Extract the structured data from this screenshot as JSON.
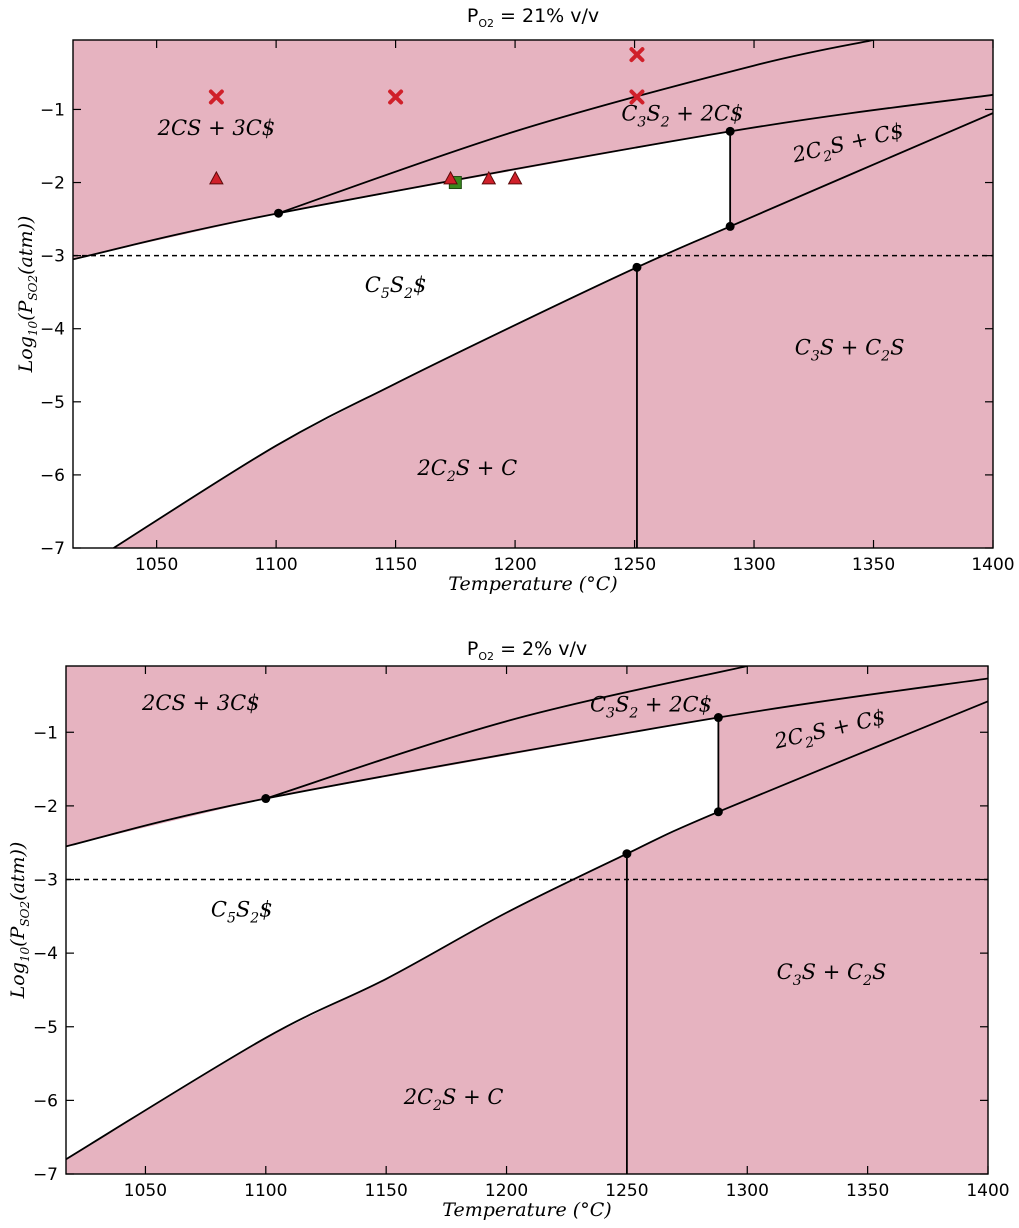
{
  "chart_data": [
    {
      "type": "area",
      "title": "P",
      "title_sub": "O2",
      "title_rest": " = 21% v/v",
      "xlabel": "Temperature (°C)",
      "ylabel": "Log10(PSO2(atm))",
      "xlim": [
        1015,
        1400
      ],
      "ylim": [
        -7,
        -0.05
      ],
      "xticks": [
        1050,
        1100,
        1150,
        1200,
        1250,
        1300,
        1350,
        1400
      ],
      "xtick_labels": [
        "1050",
        "1100",
        "1150",
        "1200",
        "1250",
        "1300",
        "1350",
        "1400"
      ],
      "yticks": [
        -1,
        -2,
        -3,
        -4,
        -5,
        -6,
        -7
      ],
      "ytick_labels": [
        "−1",
        "−2",
        "−3",
        "−4",
        "−5",
        "−6",
        "−7"
      ],
      "grid": false,
      "fill_color": "#e6b3c0",
      "reference_line": -3,
      "series": [
        {
          "role": "upper-left-boundary",
          "x": [
            1015,
            1101,
            1290,
            1400
          ],
          "y": [
            -3.05,
            -2.42,
            -1.3,
            -0.8
          ]
        },
        {
          "role": "cs-c3s2-boundary",
          "x": [
            1101,
            1200,
            1300,
            1350
          ],
          "y": [
            -2.42,
            -1.3,
            -0.4,
            -0.05
          ]
        },
        {
          "role": "lower-boundary",
          "x": [
            1032,
            1100,
            1150,
            1200,
            1251,
            1290,
            1400
          ],
          "y": [
            -7,
            -5.6,
            -4.75,
            -3.95,
            -3.16,
            -2.6,
            -1.05
          ]
        },
        {
          "role": "vertical-1251",
          "x": [
            1251,
            1251
          ],
          "y": [
            -3.16,
            -7
          ]
        },
        {
          "role": "vertical-1290",
          "x": [
            1290,
            1290
          ],
          "y": [
            -1.3,
            -2.6
          ]
        }
      ],
      "invariant_points": [
        {
          "x": 1101,
          "y": -2.42
        },
        {
          "x": 1290,
          "y": -1.3
        },
        {
          "x": 1290,
          "y": -2.6
        },
        {
          "x": 1251,
          "y": -3.16
        }
      ],
      "markers": {
        "cross": [
          {
            "x": 1075,
            "y": -0.83
          },
          {
            "x": 1150,
            "y": -0.83
          },
          {
            "x": 1251,
            "y": -0.83
          },
          {
            "x": 1251,
            "y": -0.25
          }
        ],
        "triangle": [
          {
            "x": 1075,
            "y": -1.95
          },
          {
            "x": 1173,
            "y": -1.95
          },
          {
            "x": 1189,
            "y": -1.95
          },
          {
            "x": 1200,
            "y": -1.95
          }
        ],
        "square": [
          {
            "x": 1175,
            "y": -2.0
          }
        ]
      },
      "region_labels": [
        {
          "text": "2CS + 3C$",
          "x": 1075,
          "y": -1.35
        },
        {
          "text": "C3S2 + 2C$",
          "x": 1270,
          "y": -1.15
        },
        {
          "text": "2C2S + C$",
          "x": 1340,
          "y": -1.55,
          "rotate": -13
        },
        {
          "text": "C5S2$",
          "x": 1150,
          "y": -3.5
        },
        {
          "text": "C3S + C2S",
          "x": 1340,
          "y": -4.35
        },
        {
          "text": "2C2S + C",
          "x": 1180,
          "y": -6.0
        }
      ]
    },
    {
      "type": "area",
      "title": "P",
      "title_sub": "O2",
      "title_rest": " = 2% v/v",
      "xlabel": "Temperature (°C)",
      "ylabel": "Log10(PSO2(atm))",
      "xlim": [
        1017,
        1400
      ],
      "ylim": [
        -7,
        -0.1
      ],
      "xticks": [
        1050,
        1100,
        1150,
        1200,
        1250,
        1300,
        1350,
        1400
      ],
      "xtick_labels": [
        "1050",
        "1100",
        "1150",
        "1200",
        "1250",
        "1300",
        "1350",
        "1400"
      ],
      "yticks": [
        -1,
        -2,
        -3,
        -4,
        -5,
        -6,
        -7
      ],
      "ytick_labels": [
        "−1",
        "−2",
        "−3",
        "−4",
        "−5",
        "−6",
        "−7"
      ],
      "grid": false,
      "fill_color": "#e6b3c0",
      "reference_line": -3,
      "series": [
        {
          "role": "upper-left-boundary",
          "x": [
            1017,
            1100,
            1288,
            1400
          ],
          "y": [
            -2.55,
            -1.9,
            -0.8,
            -0.27
          ]
        },
        {
          "role": "cs-c3s2-boundary",
          "x": [
            1100,
            1200,
            1300
          ],
          "y": [
            -1.9,
            -0.85,
            -0.1
          ]
        },
        {
          "role": "lower-boundary",
          "x": [
            1017,
            1100,
            1150,
            1200,
            1250,
            1288,
            1400
          ],
          "y": [
            -6.8,
            -5.15,
            -4.35,
            -3.45,
            -2.65,
            -2.08,
            -0.58
          ]
        },
        {
          "role": "vertical-1250",
          "x": [
            1250,
            1250
          ],
          "y": [
            -2.65,
            -7
          ]
        },
        {
          "role": "vertical-1288",
          "x": [
            1288,
            1288
          ],
          "y": [
            -0.8,
            -2.08
          ]
        }
      ],
      "invariant_points": [
        {
          "x": 1100,
          "y": -1.9
        },
        {
          "x": 1288,
          "y": -0.8
        },
        {
          "x": 1288,
          "y": -2.08
        },
        {
          "x": 1250,
          "y": -2.65
        }
      ],
      "markers": {
        "cross": [],
        "triangle": [],
        "square": []
      },
      "region_labels": [
        {
          "text": "2CS + 3C$",
          "x": 1073,
          "y": -0.7
        },
        {
          "text": "C3S2 + 2C$",
          "x": 1260,
          "y": -0.72
        },
        {
          "text": "2C2S + C$",
          "x": 1335,
          "y": -1.05,
          "rotate": -13
        },
        {
          "text": "C5S2$",
          "x": 1090,
          "y": -3.5
        },
        {
          "text": "C3S + C2S",
          "x": 1335,
          "y": -4.35
        },
        {
          "text": "2C2S + C",
          "x": 1178,
          "y": -6.05
        }
      ]
    }
  ]
}
